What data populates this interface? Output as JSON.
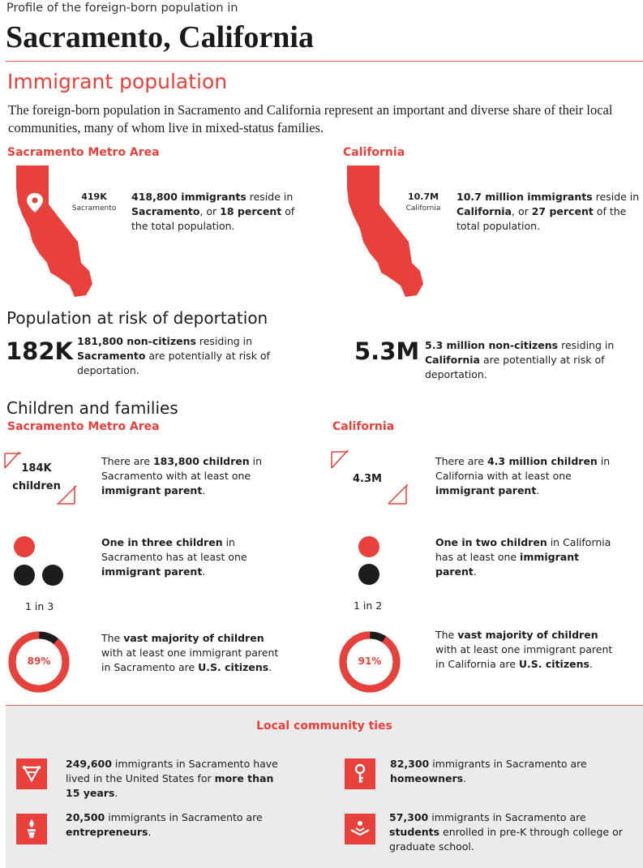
{
  "header": {
    "kicker": "Profile of the foreign-born population in",
    "title": "Sacramento, California"
  },
  "immigrant_population": {
    "heading": "Immigrant population",
    "intro": "The foreign-born population in Sacramento and California represent an important and diverse share of their local communities, many of whom live in mixed-status families.",
    "metro": {
      "label": "Sacramento Metro Area",
      "figure": "419K",
      "figure_caption": "Sacramento",
      "text": {
        "a": "418,800 immigrants",
        "b": " reside in ",
        "c": "Sacramento",
        "d": ", or ",
        "e": "18 percent",
        "f": " of the total population."
      }
    },
    "state": {
      "label": "California",
      "figure": "10.7M",
      "figure_caption": "California",
      "text": {
        "a": "10.7 million immigrants",
        "b": " reside in ",
        "c": "California",
        "d": ", or ",
        "e": "27 percent",
        "f": " of the total population."
      }
    }
  },
  "deportation": {
    "heading": "Population at risk of deportation",
    "metro": {
      "big": "182K",
      "a": "181,800 non-citizens",
      "b": " residing in ",
      "c": "Sacramento",
      "d": " are potentially at risk of deportation."
    },
    "state": {
      "big": "5.3M",
      "a": "5.3 million non-citizens",
      "b": " residing in ",
      "c": "California",
      "d": " are potentially at risk of deportation."
    }
  },
  "children": {
    "heading": "Children and families",
    "metro": {
      "label": "Sacramento Metro Area",
      "count_line1": "184K",
      "count_line2": "children",
      "count_text": {
        "a": "There are ",
        "b": "183,800 children",
        "c": " in Sacramento with at least one ",
        "d": "immigrant parent",
        "e": "."
      },
      "ratio_label": "1 in 3",
      "ratio_text": {
        "a": "One in three children",
        "b": " in Sacramento has at least one ",
        "c": "immigrant parent",
        "d": "."
      },
      "citizen_pct_label": "89%",
      "citizen_pct": 89,
      "citizen_text": {
        "a": "The ",
        "b": "vast majority of children",
        "c": " with at least one immigrant parent in Sacramento are ",
        "d": "U.S. citizens",
        "e": "."
      }
    },
    "state": {
      "label": "California",
      "count_line1": "4.3M",
      "count_text": {
        "a": "There are ",
        "b": "4.3 million children",
        "c": " in California with at least one ",
        "d": "immigrant parent",
        "e": "."
      },
      "ratio_label": "1 in 2",
      "ratio_text": {
        "a": "One in two children",
        "b": " in California has at least one ",
        "c": "immigrant parent",
        "d": "."
      },
      "citizen_pct_label": "91%",
      "citizen_pct": 91,
      "citizen_text": {
        "a": "The ",
        "b": "vast majority of children",
        "c": " with at least one immigrant parent in California are ",
        "d": "U.S. citizens",
        "e": "."
      }
    }
  },
  "community_ties": {
    "heading": "Local community ties",
    "items": [
      {
        "icon": "timeline-icon",
        "num": "249,600",
        "text": " immigrants in Sacramento have lived in the United States for ",
        "bold": "more than 15 years",
        "end": "."
      },
      {
        "icon": "key-icon",
        "num": "82,300",
        "text": " immigrants in Sacramento are ",
        "bold": "homeowners",
        "end": "."
      },
      {
        "icon": "torch-icon",
        "num": "20,500",
        "text": " immigrants in Sacramento are ",
        "bold": "entrepreneurs",
        "end": "."
      },
      {
        "icon": "book-icon",
        "num": "57,300",
        "text": " immigrants in Sacramento are ",
        "bold": "students",
        "end": " enrolled in pre-K through college or graduate school."
      }
    ]
  },
  "colors": {
    "accent": "#e8403a",
    "dark": "#1d1d1d",
    "panel": "#ebebeb"
  }
}
